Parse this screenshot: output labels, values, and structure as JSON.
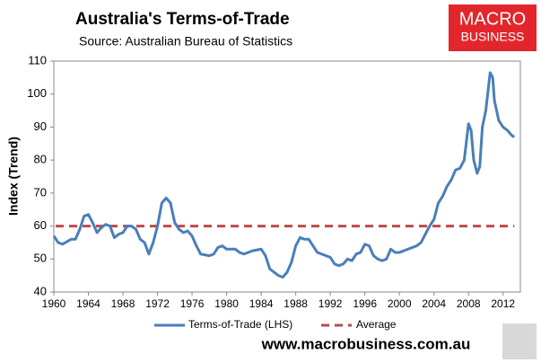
{
  "chart_data": {
    "type": "line",
    "title": "Australia's Terms-of-Trade",
    "subtitle": "Source: Australian Bureau of Statistics",
    "y_label": "Index (Trend)",
    "footer": "www.macrobusiness.com.au",
    "logo": [
      "MACRO",
      "BUSINESS"
    ],
    "x": [
      1960,
      1960.5,
      1961,
      1962,
      1962.5,
      1963,
      1963.5,
      1964,
      1964.5,
      1965,
      1965.5,
      1966,
      1966.5,
      1967,
      1967.5,
      1968,
      1968.5,
      1969,
      1969.5,
      1970,
      1970.5,
      1971,
      1971.5,
      1972,
      1972.5,
      1973,
      1973.5,
      1974,
      1974.5,
      1975,
      1975.5,
      1976,
      1976.5,
      1977,
      1978,
      1978.5,
      1979,
      1979.5,
      1980,
      1981,
      1981.5,
      1982,
      1983,
      1984,
      1984.5,
      1985,
      1986,
      1986.5,
      1987,
      1987.5,
      1988,
      1988.5,
      1989,
      1989.5,
      1990,
      1990.5,
      1991,
      1992,
      1992.5,
      1993,
      1993.5,
      1994,
      1994.5,
      1995,
      1995.5,
      1996,
      1996.5,
      1997,
      1997.5,
      1998,
      1998.5,
      1999,
      1999.5,
      2000,
      2001,
      2001.5,
      2002,
      2002.5,
      2003,
      2003.5,
      2004,
      2004.5,
      2005,
      2005.5,
      2006,
      2006.5,
      2007,
      2007.5,
      2008,
      2008.3,
      2008.6,
      2009,
      2009.3,
      2009.6,
      2010,
      2010.5,
      2010.8,
      2011,
      2011.5,
      2012,
      2012.5,
      2013,
      2013.3
    ],
    "series": [
      {
        "name": "Terms-of-Trade (LHS)",
        "color": "#4a7ebb",
        "values": [
          57,
          55,
          54.5,
          56,
          56,
          59,
          63,
          63.5,
          61,
          58,
          59.5,
          60.5,
          60,
          56.5,
          57.5,
          58,
          60,
          60,
          59,
          56,
          55,
          51.5,
          55,
          60,
          67,
          68.5,
          67,
          61,
          59,
          58,
          58.5,
          57,
          54,
          51.5,
          51,
          51.5,
          53.5,
          54,
          53,
          53,
          52,
          51.5,
          52.5,
          53,
          51,
          47,
          45,
          44.5,
          46,
          49,
          54,
          56.5,
          56,
          56,
          54,
          52,
          51.5,
          50.5,
          48.5,
          48,
          48.5,
          50,
          49.5,
          51.5,
          52,
          54.5,
          54,
          51,
          50,
          49.5,
          50,
          53,
          52,
          52,
          53,
          53.5,
          54,
          55,
          57.5,
          60,
          62,
          67,
          69,
          72,
          74,
          77,
          77.5,
          80,
          91,
          89,
          80,
          76,
          78,
          90,
          95,
          106.5,
          105,
          98,
          92,
          90,
          89,
          87.5,
          87
        ]
      }
    ],
    "average": {
      "name": "Average",
      "value": 60,
      "color": "#be4b48"
    },
    "xlim": [
      1960,
      2014
    ],
    "xticks": [
      1960,
      1964,
      1968,
      1972,
      1976,
      1980,
      1984,
      1988,
      1992,
      1996,
      2000,
      2004,
      2008,
      2012
    ],
    "ylim": [
      40,
      110
    ],
    "yticks": [
      40,
      50,
      60,
      70,
      80,
      90,
      100,
      110
    ],
    "grid": false
  }
}
